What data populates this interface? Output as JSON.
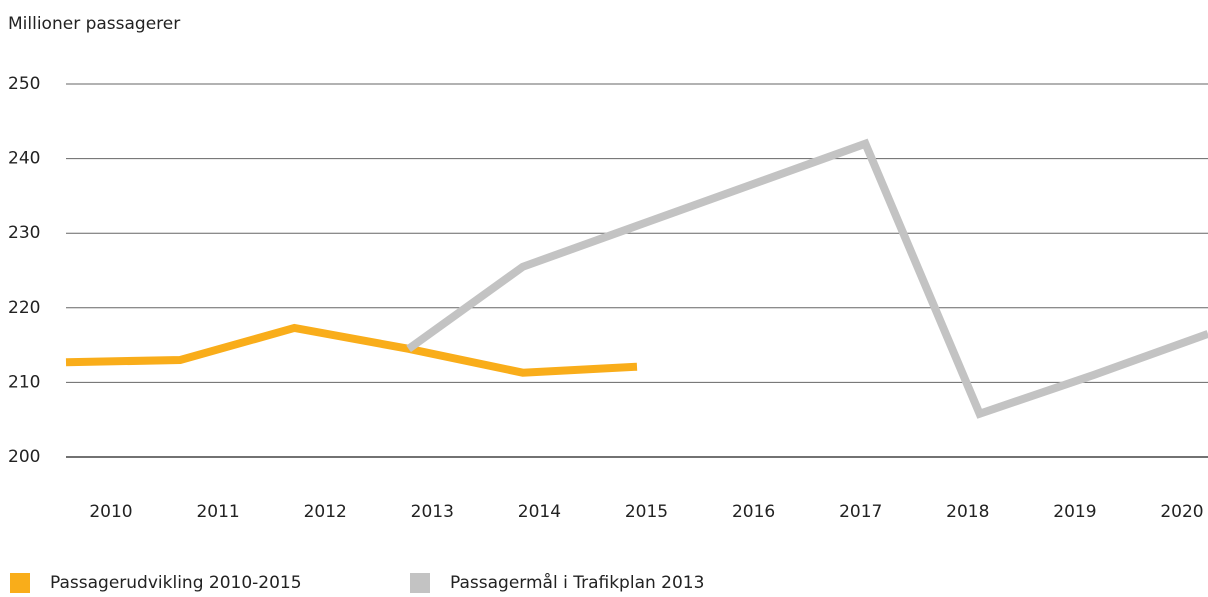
{
  "chart_data": {
    "type": "line",
    "y_axis_label": "Millioner passagerer",
    "categories": [
      "2010",
      "2011",
      "2012",
      "2013",
      "2014",
      "2015",
      "2016",
      "2017",
      "2018",
      "2019",
      "2020"
    ],
    "series": [
      {
        "name": "Passagerudvikling 2010-2015",
        "color": "#f9ad1a",
        "values": [
          212.7,
          213,
          217.3,
          214.5,
          211.3,
          212.1,
          null,
          null,
          null,
          null,
          null
        ]
      },
      {
        "name": "Passagermål i Trafikplan 2013",
        "color": "#c3c3c3",
        "values": [
          null,
          null,
          null,
          214.5,
          225.5,
          231,
          236.5,
          242,
          205.8,
          211,
          216.5
        ]
      }
    ],
    "ylim": [
      200,
      250
    ],
    "yticks": [
      200,
      210,
      220,
      230,
      240,
      250
    ],
    "grid": true
  }
}
